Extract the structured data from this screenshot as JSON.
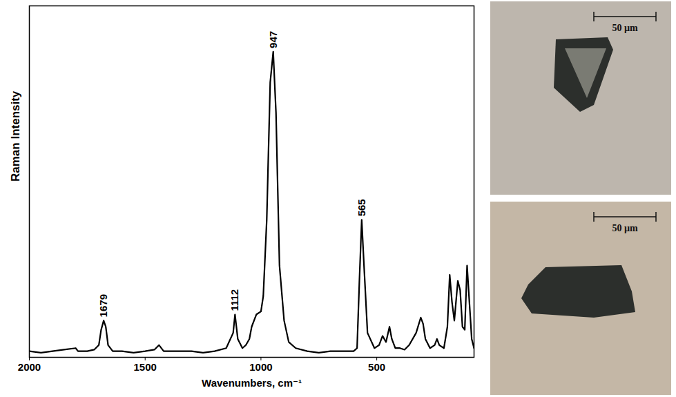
{
  "chart_data": {
    "type": "line",
    "xlabel": "Wavenumbers, cm⁻¹",
    "ylabel": "Raman Intensity",
    "x": [
      2000,
      1950,
      1900,
      1850,
      1800,
      1790,
      1750,
      1720,
      1700,
      1690,
      1679,
      1670,
      1660,
      1640,
      1600,
      1550,
      1500,
      1460,
      1440,
      1420,
      1380,
      1300,
      1250,
      1200,
      1150,
      1120,
      1112,
      1100,
      1080,
      1065,
      1050,
      1040,
      1020,
      1000,
      990,
      975,
      960,
      947,
      935,
      920,
      900,
      880,
      850,
      800,
      750,
      700,
      650,
      600,
      585,
      575,
      565,
      555,
      540,
      510,
      490,
      475,
      460,
      445,
      435,
      420,
      400,
      380,
      360,
      330,
      310,
      300,
      290,
      270,
      250,
      240,
      230,
      210,
      195,
      185,
      175,
      165,
      150,
      140,
      130,
      120,
      110,
      100,
      90,
      80
    ],
    "values": [
      2,
      1.5,
      2,
      2.5,
      3,
      2,
      2,
      2.5,
      4,
      9,
      12,
      10,
      4,
      2,
      2,
      1.5,
      2,
      2.5,
      4,
      2,
      2,
      2,
      1.5,
      2,
      3,
      8,
      14,
      6,
      3,
      4,
      6,
      10,
      14,
      15,
      20,
      45,
      90,
      100,
      80,
      30,
      12,
      5,
      3,
      2,
      1.5,
      2,
      2,
      2,
      3,
      25,
      45,
      30,
      8,
      3,
      4,
      7,
      5,
      10,
      6,
      3,
      3,
      2.5,
      4,
      8,
      13,
      11,
      6,
      3,
      4,
      6,
      4,
      3,
      10,
      27,
      18,
      12,
      25,
      22,
      10,
      9,
      30,
      18,
      6,
      3
    ],
    "color": "#000000",
    "peak_labels": [
      1679,
      1112,
      947,
      565
    ],
    "xlim": [
      2000,
      80
    ],
    "xticks": [
      2000,
      1500,
      1000,
      500
    ],
    "ylim": [
      0,
      115
    ],
    "yticks": [],
    "tick_labels": "x",
    "grid": false
  },
  "images": [
    {
      "scale_bar": "50 µm"
    },
    {
      "scale_bar": "50 µm"
    }
  ]
}
